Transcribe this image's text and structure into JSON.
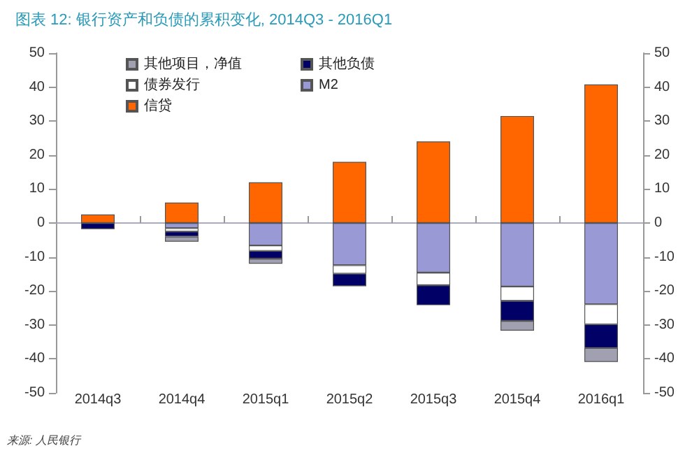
{
  "chart_data": {
    "type": "bar",
    "title": "图表 12: 银行资产和负债的累积变化, 2014Q3 - 2016Q1",
    "categories": [
      "2014q3",
      "2014q4",
      "2015q1",
      "2015q2",
      "2015q3",
      "2015q4",
      "2016q1"
    ],
    "stacked": true,
    "series": [
      {
        "name": "信贷",
        "color": "#ff6600",
        "values": [
          2.5,
          6,
          12,
          18,
          24,
          31.5,
          40.8
        ]
      },
      {
        "name": "M2",
        "color": "#9999d6",
        "values": [
          null,
          -1.5,
          -6.6,
          -12.4,
          -14.6,
          -18.7,
          -23.9
        ]
      },
      {
        "name": "债券发行",
        "color": "#ffffff",
        "values": [
          null,
          -1,
          -1.6,
          -2.5,
          -3.7,
          -4.2,
          -5.9
        ]
      },
      {
        "name": "其他负债",
        "color": "#000066",
        "values": [
          -1.8,
          -1.5,
          -2.3,
          -3.7,
          -5.9,
          -5.9,
          -7
        ]
      },
      {
        "name": "其他项目，净值",
        "color": "#a0a0b0",
        "values": [
          null,
          -1.5,
          -1.5,
          null,
          null,
          -2.9,
          -4.1
        ]
      }
    ],
    "ylim": [
      -50,
      50
    ],
    "yticks": [
      -50,
      -40,
      -30,
      -20,
      -10,
      0,
      10,
      20,
      30,
      40,
      50
    ],
    "y2lim": [
      -50,
      50
    ],
    "y2ticks": [
      -50,
      -40,
      -30,
      -20,
      -10,
      0,
      10,
      20,
      30,
      40,
      50
    ],
    "legend": "top left",
    "annotations": [
      "来源: 人民银行"
    ]
  }
}
